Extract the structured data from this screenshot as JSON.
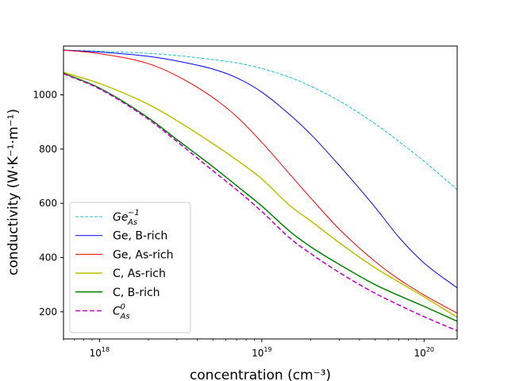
{
  "chart_data": {
    "type": "line",
    "xscale": "log",
    "xlabel": "concentration (cm⁻³)",
    "ylabel": "conductivity (W·K⁻¹·m⁻¹)",
    "xlim": [
      6e+17,
      1.6e+20
    ],
    "ylim": [
      100,
      1180
    ],
    "x_ticks": [
      {
        "value": 1e+18,
        "base": "10",
        "exp": "18"
      },
      {
        "value": 1e+19,
        "base": "10",
        "exp": "19"
      },
      {
        "value": 1e+20,
        "base": "10",
        "exp": "20"
      }
    ],
    "y_ticks": [
      200,
      400,
      600,
      800,
      1000
    ],
    "legend_position": "lower-left",
    "x": [
      6e+17,
      1e+18,
      2e+18,
      3e+18,
      5e+18,
      7e+18,
      1e+19,
      1.5e+19,
      2e+19,
      3e+19,
      5e+19,
      7e+19,
      1e+20,
      1.6e+20
    ],
    "series": [
      {
        "name": "Ge_As^-1",
        "label_main": "Ge",
        "label_sub": "As",
        "label_sup": "−1",
        "color": "#17becf",
        "style": "dashed",
        "width": 1.0,
        "values": [
          1165,
          1161,
          1153,
          1145,
          1130,
          1118,
          1097,
          1064,
          1032,
          978,
          893,
          828,
          755,
          650
        ]
      },
      {
        "name": "Ge, B-rich",
        "label": "Ge, B-rich",
        "color": "#0000ff",
        "style": "solid",
        "width": 1.0,
        "values": [
          1165,
          1158,
          1142,
          1125,
          1095,
          1063,
          1010,
          925,
          855,
          740,
          585,
          475,
          380,
          288
        ]
      },
      {
        "name": "Ge, As-rich",
        "label": "Ge, As-rich",
        "color": "#ff0000",
        "style": "solid",
        "width": 1.0,
        "values": [
          1165,
          1152,
          1115,
          1070,
          990,
          920,
          825,
          705,
          620,
          505,
          385,
          320,
          262,
          195
        ]
      },
      {
        "name": "C, As-rich",
        "label": "C, As-rich",
        "color": "#bfbf00",
        "style": "solid",
        "width": 1.5,
        "values": [
          1083,
          1042,
          965,
          905,
          820,
          760,
          690,
          590,
          535,
          455,
          362,
          310,
          255,
          180
        ]
      },
      {
        "name": "C, B-rich",
        "label": "C, B-rich",
        "color": "#008000",
        "style": "solid",
        "width": 1.5,
        "values": [
          1080,
          1025,
          915,
          835,
          735,
          665,
          590,
          495,
          440,
          375,
          300,
          260,
          220,
          165
        ]
      },
      {
        "name": "C_As^0",
        "label_main": "C",
        "label_sub": "As",
        "label_sup": "0",
        "color": "#bf00bf",
        "style": "dashed",
        "width": 1.5,
        "values": [
          1078,
          1022,
          910,
          828,
          720,
          650,
          570,
          470,
          415,
          345,
          268,
          225,
          182,
          130
        ]
      }
    ]
  }
}
